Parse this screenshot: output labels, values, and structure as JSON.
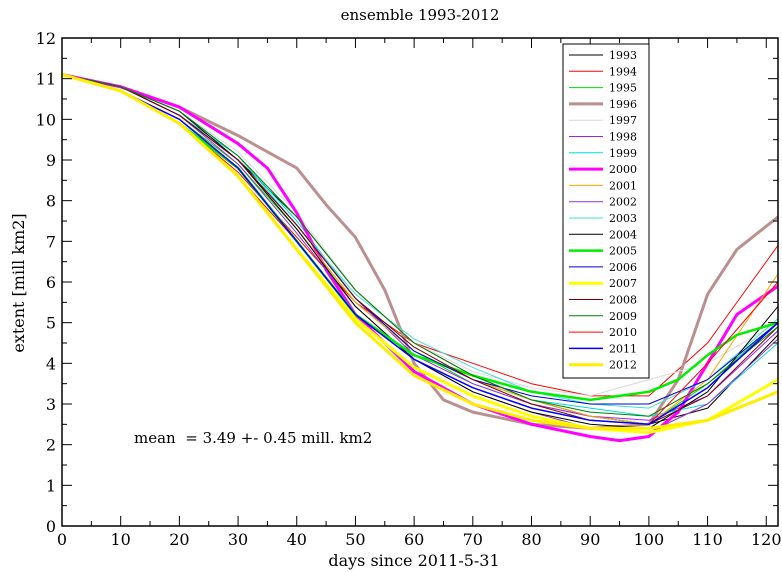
{
  "chart_data": {
    "type": "line",
    "title": "ensemble 1993-2012",
    "xlabel": "days since 2011-5-31",
    "ylabel": "extent [mill km2]",
    "xlim": [
      0,
      122
    ],
    "ylim": [
      0,
      12
    ],
    "x_ticks": [
      0,
      10,
      20,
      30,
      40,
      50,
      60,
      70,
      80,
      90,
      100,
      110,
      120
    ],
    "y_ticks": [
      0,
      1,
      2,
      3,
      4,
      5,
      6,
      7,
      8,
      9,
      10,
      11,
      12
    ],
    "grid": false,
    "legend_position": "top-right",
    "annotation": "mean  = 3.49 +- 0.45 mill. km2",
    "series": [
      {
        "name": "1993",
        "color": "#000000",
        "width": 1,
        "x": [
          0,
          10,
          20,
          30,
          40,
          50,
          60,
          70,
          80,
          90,
          100,
          110,
          122
        ],
        "y": [
          11.1,
          10.8,
          10.1,
          9.0,
          7.6,
          5.8,
          4.5,
          3.7,
          3.1,
          2.7,
          2.5,
          2.9,
          4.7
        ]
      },
      {
        "name": "1994",
        "color": "#ff0000",
        "width": 1,
        "x": [
          0,
          10,
          20,
          30,
          40,
          50,
          60,
          70,
          80,
          90,
          100,
          110,
          122
        ],
        "y": [
          11.1,
          10.7,
          9.9,
          8.7,
          7.1,
          5.5,
          4.5,
          4.0,
          3.5,
          3.2,
          3.2,
          4.5,
          6.9
        ]
      },
      {
        "name": "1995",
        "color": "#00dd00",
        "width": 1,
        "x": [
          0,
          10,
          20,
          30,
          40,
          50,
          60,
          70,
          80,
          90,
          100,
          110,
          122
        ],
        "y": [
          11.1,
          10.7,
          10.0,
          8.9,
          7.3,
          5.5,
          4.3,
          3.5,
          3.0,
          2.7,
          2.5,
          3.5,
          5.0
        ]
      },
      {
        "name": "1996",
        "color": "#bc8f8f",
        "width": 3,
        "x": [
          0,
          10,
          20,
          30,
          40,
          45,
          50,
          55,
          60,
          65,
          70,
          80,
          90,
          100,
          105,
          110,
          115,
          122
        ],
        "y": [
          11.1,
          10.8,
          10.3,
          9.6,
          8.8,
          7.9,
          7.1,
          5.8,
          4.0,
          3.1,
          2.8,
          2.5,
          2.4,
          2.5,
          3.6,
          5.7,
          6.8,
          7.6
        ]
      },
      {
        "name": "1997",
        "color": "#d9d9d9",
        "width": 1,
        "x": [
          0,
          10,
          20,
          30,
          40,
          50,
          60,
          70,
          80,
          90,
          100,
          110,
          122
        ],
        "y": [
          11.1,
          10.8,
          10.2,
          9.2,
          7.7,
          5.8,
          4.5,
          3.8,
          3.4,
          3.2,
          3.6,
          4.0,
          5.0
        ]
      },
      {
        "name": "1998",
        "color": "#a020f0",
        "width": 1,
        "x": [
          0,
          10,
          20,
          30,
          40,
          50,
          60,
          70,
          80,
          90,
          100,
          110,
          122
        ],
        "y": [
          11.1,
          10.8,
          10.1,
          9.0,
          7.4,
          5.6,
          4.2,
          3.5,
          3.0,
          2.7,
          2.6,
          3.2,
          4.8
        ]
      },
      {
        "name": "1999",
        "color": "#00dddd",
        "width": 1,
        "x": [
          0,
          10,
          20,
          30,
          40,
          50,
          60,
          70,
          80,
          90,
          100,
          110,
          122
        ],
        "y": [
          11.1,
          10.8,
          10.1,
          9.1,
          7.5,
          5.6,
          4.3,
          3.6,
          3.1,
          2.9,
          2.7,
          3.0,
          4.5
        ]
      },
      {
        "name": "2000",
        "color": "#ff00ff",
        "width": 3,
        "x": [
          0,
          10,
          20,
          30,
          35,
          40,
          45,
          50,
          60,
          70,
          80,
          90,
          95,
          100,
          105,
          110,
          115,
          122
        ],
        "y": [
          11.1,
          10.8,
          10.3,
          9.4,
          8.8,
          7.7,
          6.3,
          5.2,
          3.8,
          3.0,
          2.5,
          2.2,
          2.1,
          2.2,
          2.8,
          4.0,
          5.2,
          5.9
        ]
      },
      {
        "name": "2001",
        "color": "#ffa500",
        "width": 1,
        "x": [
          0,
          10,
          20,
          30,
          40,
          50,
          60,
          70,
          80,
          90,
          100,
          110,
          122
        ],
        "y": [
          11.1,
          10.8,
          10.1,
          9.0,
          7.3,
          5.5,
          4.3,
          3.6,
          3.1,
          2.7,
          2.5,
          3.6,
          6.2
        ]
      },
      {
        "name": "2002",
        "color": "#9932cc",
        "width": 1,
        "x": [
          0,
          10,
          20,
          30,
          40,
          50,
          60,
          70,
          80,
          90,
          100,
          110,
          122
        ],
        "y": [
          11.1,
          10.8,
          10.1,
          8.9,
          7.2,
          5.4,
          4.1,
          3.3,
          2.8,
          2.4,
          2.3,
          3.0,
          4.6
        ]
      },
      {
        "name": "2003",
        "color": "#40e0d0",
        "width": 1,
        "x": [
          0,
          10,
          20,
          30,
          40,
          50,
          60,
          70,
          80,
          90,
          100,
          110,
          122
        ],
        "y": [
          11.1,
          10.8,
          10.2,
          9.1,
          7.4,
          5.7,
          4.6,
          3.9,
          3.3,
          3.0,
          2.9,
          3.6,
          5.1
        ]
      },
      {
        "name": "2004",
        "color": "#000000",
        "width": 1,
        "x": [
          0,
          10,
          20,
          30,
          40,
          50,
          60,
          70,
          80,
          90,
          100,
          110,
          122
        ],
        "y": [
          11.1,
          10.8,
          10.2,
          9.0,
          7.3,
          5.4,
          4.1,
          3.3,
          2.8,
          2.5,
          2.4,
          3.3,
          5.4
        ]
      },
      {
        "name": "2005",
        "color": "#00ee00",
        "width": 2.5,
        "x": [
          0,
          10,
          20,
          30,
          40,
          50,
          60,
          70,
          80,
          90,
          100,
          105,
          110,
          115,
          122
        ],
        "y": [
          11.1,
          10.7,
          9.9,
          8.8,
          7.0,
          5.2,
          4.2,
          3.7,
          3.3,
          3.1,
          3.3,
          3.6,
          4.2,
          4.7,
          5.0
        ]
      },
      {
        "name": "2006",
        "color": "#0000cd",
        "width": 1,
        "x": [
          0,
          10,
          20,
          30,
          40,
          50,
          60,
          70,
          80,
          90,
          100,
          110,
          122
        ],
        "y": [
          11.1,
          10.8,
          10.1,
          9.0,
          7.4,
          5.6,
          4.3,
          3.6,
          3.2,
          3.0,
          3.0,
          3.6,
          5.0
        ]
      },
      {
        "name": "2007",
        "color": "#ffff00",
        "width": 3,
        "x": [
          0,
          10,
          20,
          30,
          40,
          50,
          60,
          70,
          80,
          90,
          100,
          110,
          122
        ],
        "y": [
          11.1,
          10.7,
          9.9,
          8.6,
          6.8,
          5.1,
          3.9,
          3.2,
          2.7,
          2.4,
          2.3,
          2.6,
          3.6
        ]
      },
      {
        "name": "2008",
        "color": "#800000",
        "width": 1,
        "x": [
          0,
          10,
          20,
          30,
          40,
          50,
          60,
          70,
          80,
          90,
          100,
          110,
          122
        ],
        "y": [
          11.1,
          10.8,
          10.1,
          9.0,
          7.4,
          5.6,
          4.4,
          3.6,
          3.0,
          2.6,
          2.5,
          3.2,
          4.9
        ]
      },
      {
        "name": "2009",
        "color": "#008000",
        "width": 1,
        "x": [
          0,
          10,
          20,
          30,
          40,
          50,
          60,
          70,
          80,
          90,
          100,
          110,
          122
        ],
        "y": [
          11.1,
          10.8,
          10.2,
          9.1,
          7.6,
          5.8,
          4.5,
          3.7,
          3.1,
          2.8,
          2.7,
          3.5,
          4.9
        ]
      },
      {
        "name": "2010",
        "color": "#ff0000",
        "width": 1,
        "x": [
          0,
          10,
          20,
          30,
          40,
          50,
          60,
          70,
          80,
          90,
          100,
          110,
          122
        ],
        "y": [
          11.1,
          10.7,
          9.9,
          8.6,
          7.0,
          5.2,
          4.1,
          3.4,
          2.9,
          2.6,
          2.5,
          4.0,
          6.0
        ]
      },
      {
        "name": "2011",
        "color": "#0000ff",
        "width": 1.5,
        "x": [
          0,
          10,
          20,
          30,
          40,
          50,
          60,
          70,
          80,
          90,
          100,
          110,
          122
        ],
        "y": [
          11.1,
          10.7,
          10.0,
          8.8,
          7.0,
          5.2,
          4.1,
          3.4,
          2.9,
          2.6,
          2.5,
          3.4,
          5.0
        ]
      },
      {
        "name": "2012",
        "color": "#ffee00",
        "width": 3,
        "x": [
          0,
          10,
          20,
          30,
          40,
          50,
          60,
          70,
          80,
          90,
          100,
          110,
          122
        ],
        "y": [
          11.1,
          10.7,
          9.9,
          8.6,
          6.8,
          5.0,
          3.7,
          3.0,
          2.6,
          2.4,
          2.4,
          2.6,
          3.3
        ]
      }
    ]
  }
}
